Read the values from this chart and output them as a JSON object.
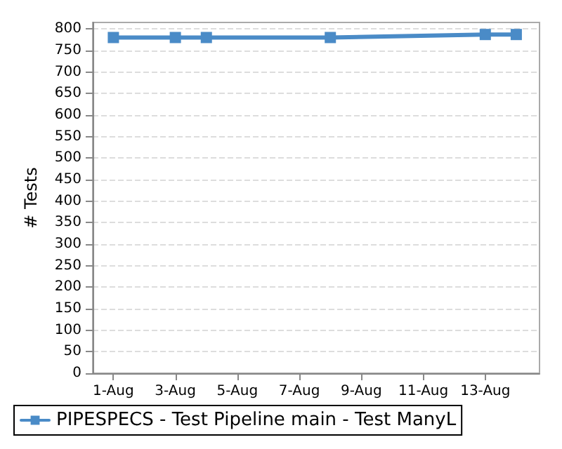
{
  "chart_data": {
    "type": "line",
    "ylabel": "# Tests",
    "x": [
      "--08-01",
      "--08-03",
      "--08-04",
      "--08-08",
      "--08-13",
      "--08-14"
    ],
    "series": [
      {
        "name": "PIPESPECS - Test Pipeline main - Test ManyL",
        "color": "#4a8bc7",
        "values": [
          780,
          780,
          780,
          780,
          787,
          787
        ]
      }
    ],
    "xlim": [
      "--07-31T08:00",
      "--08-14T18:00"
    ],
    "xticks": [
      {
        "value": "--08-01",
        "label": "1-Aug"
      },
      {
        "value": "--08-03",
        "label": "3-Aug"
      },
      {
        "value": "--08-05",
        "label": "5-Aug"
      },
      {
        "value": "--08-07",
        "label": "7-Aug"
      },
      {
        "value": "--08-09",
        "label": "9-Aug"
      },
      {
        "value": "--08-11",
        "label": "11-Aug"
      },
      {
        "value": "--08-13",
        "label": "13-Aug"
      }
    ],
    "ylim": [
      0,
      815
    ],
    "yticks": [
      0,
      50,
      100,
      150,
      200,
      250,
      300,
      350,
      400,
      450,
      500,
      550,
      600,
      650,
      700,
      750,
      800
    ],
    "grid": "y",
    "legend": "bottom",
    "marker": "square",
    "line_style": "solid"
  }
}
